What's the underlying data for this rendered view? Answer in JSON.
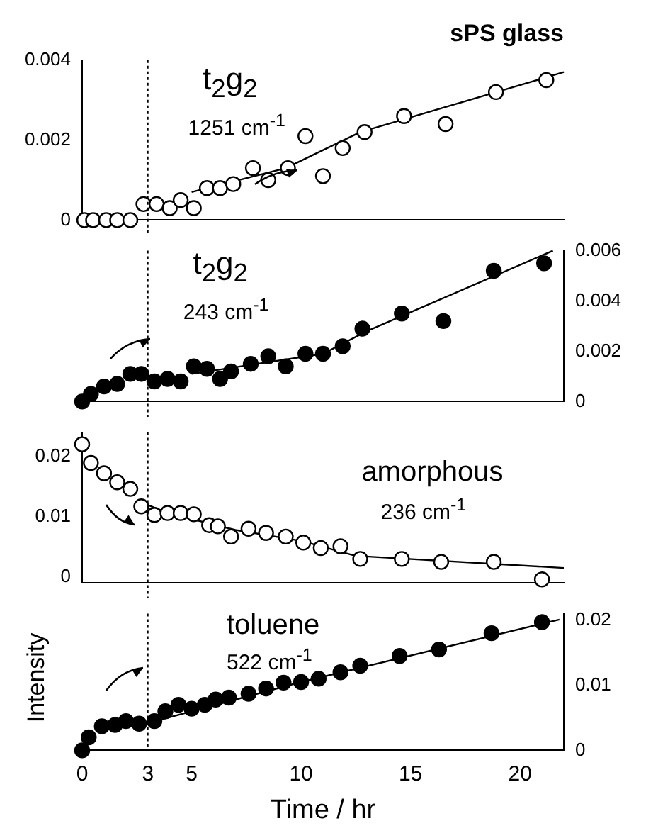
{
  "chart_data": [
    {
      "type": "scatter",
      "title": "sPS glass",
      "annotations": [
        "t$_{2}$g$_{2}$",
        "1251 cm$^{-1}$"
      ],
      "xlim": [
        0,
        22
      ],
      "ylim": [
        0,
        0.004
      ],
      "yticks": [
        0,
        0.002,
        0.004
      ],
      "tick_labels": "y",
      "grid": false,
      "marker": "circle",
      "ref_lines": [
        {
          "axis": "x",
          "value": 3,
          "line_style": "dotted"
        }
      ],
      "series": [
        {
          "color": "#000000",
          "x": [
            0.1,
            0.5,
            1.1,
            1.6,
            2.2,
            2.8,
            3.4,
            4.0,
            4.5,
            5.1,
            5.7,
            6.3,
            6.9,
            7.8,
            8.5,
            9.4,
            10.2,
            11.0,
            11.9,
            12.9,
            14.7,
            16.6,
            18.9,
            21.2
          ],
          "values": [
            0,
            0,
            0,
            0,
            0,
            0.0004,
            0.0004,
            0.0003,
            0.0005,
            0.0003,
            0.0008,
            0.0008,
            0.0009,
            0.0013,
            0.001,
            0.0013,
            0.0021,
            0.0011,
            0.0018,
            0.0022,
            0.0026,
            0.0024,
            0.0032,
            0.0035
          ]
        },
        {
          "type": "line",
          "color": "#000000",
          "marker": "none",
          "x": [
            5,
            9.3,
            12.7,
            22
          ],
          "values": [
            0.0007,
            0.0013,
            0.0022,
            0.0037
          ]
        }
      ]
    },
    {
      "type": "scatter",
      "annotations": [
        "t$_{2}$g$_{2}$",
        "243 cm$^{-1}$"
      ],
      "xlim": [
        0,
        22
      ],
      "y2lim": [
        0,
        0.006
      ],
      "y2ticks": [
        0,
        0.002,
        0.004,
        0.006
      ],
      "tick_labels": "y2",
      "grid": false,
      "marker": "circle",
      "ref_lines": [
        {
          "axis": "x",
          "value": 3,
          "line_style": "dotted"
        }
      ],
      "series": [
        {
          "color": "#000000",
          "axis": "y2",
          "x": [
            0,
            0.4,
            1.0,
            1.6,
            2.2,
            2.7,
            3.3,
            3.9,
            4.5,
            5.1,
            5.7,
            6.3,
            6.8,
            7.7,
            8.5,
            9.3,
            10.2,
            11.0,
            11.9,
            12.8,
            14.6,
            16.5,
            18.8,
            21.1
          ],
          "values": [
            0,
            0.0003,
            0.0006,
            0.0007,
            0.0011,
            0.0011,
            0.0008,
            0.0009,
            0.0008,
            0.0014,
            0.0013,
            0.0009,
            0.0012,
            0.0015,
            0.0018,
            0.0014,
            0.0019,
            0.0019,
            0.0022,
            0.0029,
            0.0035,
            0.0032,
            0.0052,
            0.0055
          ]
        },
        {
          "type": "line",
          "color": "#000000",
          "marker": "none",
          "axis": "y2",
          "x": [
            5,
            11,
            13,
            21.5
          ],
          "values": [
            0.0011,
            0.0019,
            0.0028,
            0.006
          ]
        }
      ]
    },
    {
      "type": "scatter",
      "annotations": [
        "amorphous",
        "236 cm$^{-1}$"
      ],
      "xlim": [
        0,
        22
      ],
      "ylim": [
        -0.001,
        0.024
      ],
      "yticks": [
        0,
        0.01,
        0.02
      ],
      "tick_labels": "y",
      "grid": false,
      "marker": "circle",
      "ref_lines": [
        {
          "axis": "x",
          "value": 3,
          "line_style": "dotted"
        }
      ],
      "series": [
        {
          "color": "#000000",
          "x": [
            0,
            0.4,
            1.0,
            1.6,
            2.2,
            2.7,
            3.3,
            3.9,
            4.5,
            5.1,
            5.8,
            6.2,
            6.8,
            7.6,
            8.4,
            9.3,
            10.1,
            10.9,
            11.8,
            12.7,
            14.6,
            16.4,
            18.8,
            21.0
          ],
          "values": [
            0.022,
            0.0189,
            0.0172,
            0.0157,
            0.0146,
            0.0117,
            0.0103,
            0.0106,
            0.0106,
            0.0104,
            0.0086,
            0.0084,
            0.0067,
            0.008,
            0.0073,
            0.0067,
            0.0057,
            0.0048,
            0.0051,
            0.003,
            0.003,
            0.0025,
            0.0025,
            -0.0004
          ]
        },
        {
          "type": "line",
          "color": "#000000",
          "marker": "none",
          "x": [
            2.6,
            4,
            7,
            10,
            12.5,
            22
          ],
          "values": [
            0.0125,
            0.0105,
            0.0078,
            0.006,
            0.0035,
            0.0015
          ]
        }
      ]
    },
    {
      "type": "scatter",
      "annotations": [
        "toluene",
        "522 cm$^{-1}$"
      ],
      "xlabel": "Time / hr",
      "ylabel": "Intensity",
      "xlim": [
        0,
        22
      ],
      "xticks": [
        0,
        3,
        5,
        10,
        15,
        20
      ],
      "y2lim": [
        0,
        0.021
      ],
      "y2ticks": [
        0,
        0.01,
        0.02
      ],
      "grid": false,
      "marker": "circle",
      "ref_lines": [
        {
          "axis": "x",
          "value": 3,
          "line_style": "dotted"
        }
      ],
      "series": [
        {
          "color": "#000000",
          "axis": "y2",
          "x": [
            0,
            0.3,
            0.9,
            1.5,
            2.0,
            2.6,
            3.3,
            3.8,
            4.4,
            5.0,
            5.6,
            6.1,
            6.7,
            7.6,
            8.4,
            9.2,
            10.0,
            10.8,
            11.8,
            12.7,
            14.5,
            16.3,
            18.7,
            21.0
          ],
          "values": [
            0,
            0.002,
            0.0037,
            0.0039,
            0.0045,
            0.0041,
            0.0045,
            0.006,
            0.007,
            0.0064,
            0.007,
            0.0078,
            0.0081,
            0.0087,
            0.0095,
            0.0104,
            0.0105,
            0.011,
            0.012,
            0.013,
            0.0145,
            0.0155,
            0.018,
            0.0197
          ]
        },
        {
          "type": "line",
          "color": "#000000",
          "marker": "none",
          "axis": "y2",
          "x": [
            3,
            10,
            21.8
          ],
          "values": [
            0.0042,
            0.0105,
            0.0201
          ]
        }
      ]
    }
  ]
}
